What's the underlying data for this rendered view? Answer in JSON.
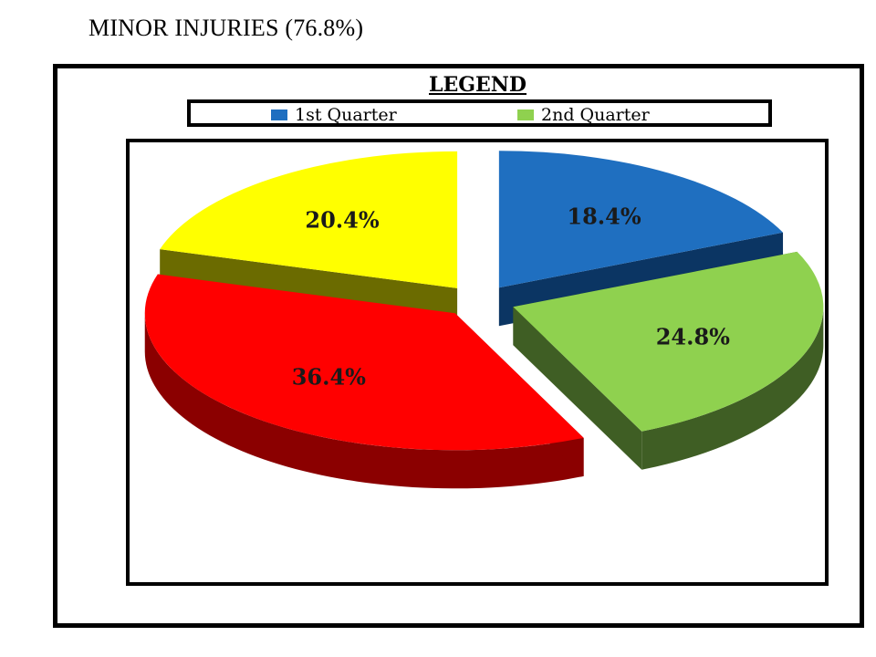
{
  "page": {
    "title": "MINOR INJURIES (76.8%)"
  },
  "legend": {
    "title": "LEGEND",
    "items": [
      {
        "label": "1st Quarter",
        "color": "#1f6fc0"
      },
      {
        "label": "2nd Quarter",
        "color": "#8fd14f"
      }
    ]
  },
  "chart_data": {
    "type": "pie",
    "title": "MINOR INJURIES (76.8%)",
    "style": "3d-exploded",
    "slices": [
      {
        "label": "18.4%",
        "value": 18.4,
        "color": "#1f6fc0",
        "side": "#0b3563"
      },
      {
        "label": "24.8%",
        "value": 24.8,
        "color": "#8fd14f",
        "side": "#3f5e24"
      },
      {
        "label": "36.4%",
        "value": 36.4,
        "color": "#ff0000",
        "side": "#8b0000"
      },
      {
        "label": "20.4%",
        "value": 20.4,
        "color": "#ffff00",
        "side": "#6b6b00"
      }
    ],
    "legend_position": "top"
  }
}
